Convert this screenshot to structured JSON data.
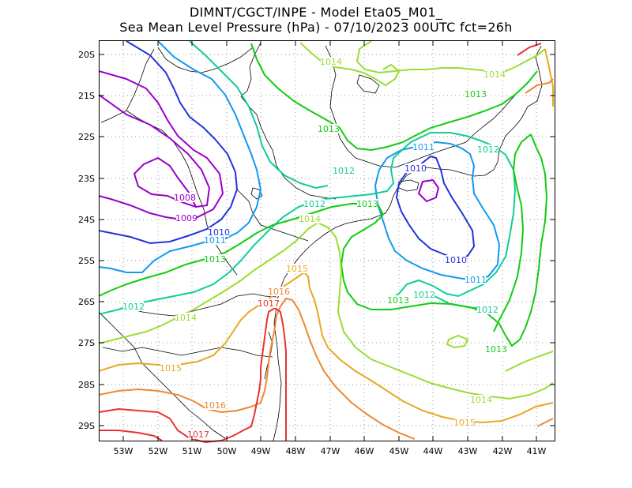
{
  "header": {
    "line1": "DIMNT/CGCT/INPE -  Model Eta05_M01_",
    "line2": "Sea Mean Level Pressure (hPa) - 07/10/2023 00UTC fct=26h"
  },
  "axes": {
    "lat_labels": [
      "20S",
      "21S",
      "22S",
      "23S",
      "24S",
      "25S",
      "26S",
      "27S",
      "28S",
      "29S"
    ],
    "lon_labels": [
      "53W",
      "52W",
      "51W",
      "50W",
      "49W",
      "48W",
      "47W",
      "46W",
      "45W",
      "44W",
      "43W",
      "42W",
      "41W"
    ]
  },
  "contour_colors": {
    "1008": "#9900cc",
    "1009": "#9900cc",
    "1010": "#2233dd",
    "1011": "#1199ee",
    "1012": "#11cc99",
    "1013": "#11cc11",
    "1014": "#99dd33",
    "1015": "#e8a820",
    "1016": "#ee8833",
    "1017": "#e83333"
  },
  "contour_labels": [
    {
      "text": "1014",
      "level": "1014"
    },
    {
      "text": "1014",
      "level": "1014"
    },
    {
      "text": "1013",
      "level": "1013"
    },
    {
      "text": "1013",
      "level": "1013"
    },
    {
      "text": "1011",
      "level": "1011"
    },
    {
      "text": "1012",
      "level": "1012"
    },
    {
      "text": "1010",
      "level": "1010"
    },
    {
      "text": "1012",
      "level": "1012"
    },
    {
      "text": "1008",
      "level": "1008"
    },
    {
      "text": "1009",
      "level": "1009"
    },
    {
      "text": "1012",
      "level": "1012"
    },
    {
      "text": "1013",
      "level": "1013"
    },
    {
      "text": "1014",
      "level": "1014"
    },
    {
      "text": "1010",
      "level": "1010"
    },
    {
      "text": "1011",
      "level": "1011"
    },
    {
      "text": "1013",
      "level": "1013"
    },
    {
      "text": "1015",
      "level": "1015"
    },
    {
      "text": "1010",
      "level": "1010"
    },
    {
      "text": "1011",
      "level": "1011"
    },
    {
      "text": "1012",
      "level": "1012"
    },
    {
      "text": "1013",
      "level": "1013"
    },
    {
      "text": "1016",
      "level": "1016"
    },
    {
      "text": "1017",
      "level": "1017"
    },
    {
      "text": "1012",
      "level": "1012"
    },
    {
      "text": "1014",
      "level": "1014"
    },
    {
      "text": "1012",
      "level": "1012"
    },
    {
      "text": "1013",
      "level": "1013"
    },
    {
      "text": "1015",
      "level": "1015"
    },
    {
      "text": "1014",
      "level": "1014"
    },
    {
      "text": "1016",
      "level": "1016"
    },
    {
      "text": "1015",
      "level": "1015"
    },
    {
      "text": "1017",
      "level": "1017"
    }
  ]
}
